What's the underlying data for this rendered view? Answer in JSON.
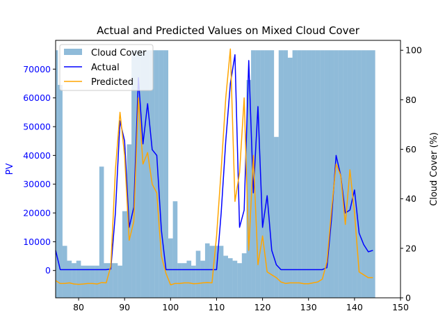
{
  "chart_data": {
    "type": "bar+line",
    "title": "Actual and Predicted Values on Mixed Cloud Cover",
    "xlabel": "",
    "ylabel": "PV",
    "y2label": "Cloud Cover (%)",
    "xlim": [
      75,
      150
    ],
    "ylim": [
      -9500,
      80000
    ],
    "y2lim": [
      0,
      104
    ],
    "x_ticks": [
      80,
      90,
      100,
      110,
      120,
      130,
      140,
      150
    ],
    "y_ticks": [
      0,
      10000,
      20000,
      30000,
      40000,
      50000,
      60000,
      70000
    ],
    "y2_ticks": [
      0,
      20,
      40,
      60,
      80,
      100
    ],
    "legend_position": "top-left",
    "colors": {
      "cloud_cover": "#1f77b4",
      "actual": "#0000ff",
      "predicted": "#ffa500",
      "left_axis_text": "#0000ff"
    },
    "legend": [
      {
        "label": "Cloud Cover",
        "kind": "bar"
      },
      {
        "label": "Actual",
        "kind": "line"
      },
      {
        "label": "Predicted",
        "kind": "line"
      }
    ],
    "cloud_cover": {
      "name": "Cloud Cover",
      "axis": "right",
      "x": [
        75,
        76,
        77,
        78,
        79,
        80,
        81,
        82,
        83,
        84,
        85,
        86,
        87,
        88,
        89,
        90,
        91,
        92,
        93,
        94,
        95,
        96,
        97,
        98,
        99,
        100,
        101,
        102,
        103,
        104,
        105,
        106,
        107,
        108,
        109,
        110,
        111,
        112,
        113,
        114,
        115,
        116,
        117,
        118,
        119,
        120,
        121,
        122,
        123,
        124,
        125,
        126,
        127,
        128,
        129,
        130,
        131,
        132,
        133,
        134,
        135,
        136,
        137,
        138,
        139,
        140,
        141,
        142,
        143,
        144
      ],
      "values": [
        100,
        86,
        21,
        15,
        14,
        15,
        13,
        13,
        13,
        13,
        53,
        14,
        14,
        14,
        13,
        35,
        62,
        100,
        100,
        100,
        100,
        100,
        100,
        100,
        100,
        24,
        39,
        14,
        14,
        15,
        13,
        19,
        15,
        22,
        21,
        21,
        21,
        17,
        16,
        15,
        14,
        18,
        88,
        100,
        100,
        100,
        100,
        100,
        65,
        100,
        100,
        97,
        100,
        100,
        100,
        100,
        100,
        100,
        100,
        100,
        100,
        100,
        100,
        100,
        100,
        100,
        100,
        100,
        100,
        100
      ]
    },
    "series": [
      {
        "name": "Actual",
        "axis": "left",
        "x": [
          75,
          76,
          77,
          78,
          79,
          80,
          81,
          82,
          83,
          84,
          85,
          86,
          87,
          88,
          89,
          90,
          91,
          92,
          93,
          94,
          95,
          96,
          97,
          98,
          99,
          100,
          101,
          102,
          103,
          104,
          105,
          106,
          107,
          108,
          109,
          110,
          111,
          112,
          113,
          114,
          115,
          116,
          117,
          118,
          119,
          120,
          121,
          122,
          123,
          124,
          125,
          126,
          127,
          128,
          129,
          130,
          131,
          132,
          133,
          134,
          135,
          136,
          137,
          138,
          139,
          140,
          141,
          142,
          143,
          144
        ],
        "values": [
          7000,
          300,
          300,
          300,
          300,
          300,
          300,
          300,
          300,
          300,
          300,
          300,
          500,
          20000,
          52000,
          45000,
          15000,
          22000,
          67000,
          44000,
          58000,
          42000,
          40000,
          14000,
          300,
          300,
          300,
          300,
          300,
          300,
          300,
          300,
          300,
          300,
          300,
          300,
          20000,
          45000,
          65000,
          75000,
          15000,
          21000,
          73000,
          27000,
          57000,
          15000,
          26000,
          7000,
          2000,
          300,
          300,
          300,
          300,
          300,
          300,
          300,
          300,
          300,
          300,
          1000,
          18000,
          40000,
          33000,
          20000,
          21000,
          28000,
          13000,
          9000,
          6500,
          7000
        ]
      },
      {
        "name": "Predicted",
        "axis": "left",
        "x": [
          75,
          76,
          77,
          78,
          79,
          80,
          81,
          82,
          83,
          84,
          85,
          86,
          87,
          88,
          89,
          90,
          91,
          92,
          93,
          94,
          95,
          96,
          97,
          98,
          99,
          100,
          101,
          102,
          103,
          104,
          105,
          106,
          107,
          108,
          109,
          110,
          111,
          112,
          113,
          114,
          115,
          116,
          117,
          118,
          119,
          120,
          121,
          122,
          123,
          124,
          125,
          126,
          127,
          128,
          129,
          130,
          131,
          132,
          133,
          134,
          135,
          136,
          137,
          138,
          139,
          140,
          141,
          142,
          143,
          144
        ],
        "values": [
          -3500,
          -4500,
          -4500,
          -4300,
          -4700,
          -4800,
          -4700,
          -4500,
          -4500,
          -4700,
          -4200,
          -4300,
          1500,
          35000,
          55000,
          40000,
          10500,
          17000,
          60000,
          37000,
          41000,
          30000,
          27000,
          5000,
          -1000,
          -5000,
          -4500,
          -4500,
          -4300,
          -4300,
          -4600,
          -4500,
          -4300,
          -4200,
          -4300,
          12000,
          35000,
          60000,
          77000,
          24000,
          34000,
          60000,
          7000,
          40000,
          2000,
          12000,
          -500,
          -1500,
          -2500,
          -4000,
          -4500,
          -4300,
          -4300,
          -4300,
          -4600,
          -4600,
          -4300,
          -4000,
          -3000,
          3000,
          21000,
          37000,
          33000,
          16000,
          35000,
          20000,
          -500,
          -1500,
          -2500,
          -2500
        ]
      }
    ]
  }
}
